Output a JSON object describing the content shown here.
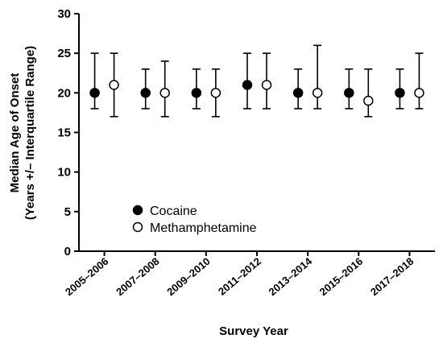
{
  "chart_data": {
    "type": "scatter",
    "categories": [
      "2005–2006",
      "2007–2008",
      "2009–2010",
      "2011–2012",
      "2013–2014",
      "2015–2016",
      "2017–2018"
    ],
    "series": [
      {
        "name": "Cocaine",
        "marker": "filled-circle",
        "color": "#000000",
        "median": [
          20,
          20,
          20,
          21,
          20,
          20,
          20
        ],
        "lower": [
          18,
          18,
          18,
          18,
          18,
          18,
          18
        ],
        "upper": [
          25,
          23,
          23,
          25,
          23,
          23,
          23
        ]
      },
      {
        "name": "Methamphetamine",
        "marker": "open-circle",
        "color": "#000000",
        "median": [
          21,
          20,
          20,
          21,
          20,
          19,
          20
        ],
        "lower": [
          17,
          17,
          17,
          18,
          18,
          17,
          18
        ],
        "upper": [
          25,
          24,
          23,
          25,
          26,
          23,
          25
        ]
      }
    ],
    "xlabel": "Survey Year",
    "ylabel_lines": [
      "Median Age of Onset",
      "(Years +/– Interquartile Range)"
    ],
    "ylim": [
      0,
      30
    ],
    "yticks": [
      0,
      5,
      10,
      15,
      20,
      25,
      30
    ],
    "grid": false,
    "legend_position": "bottom-left"
  }
}
